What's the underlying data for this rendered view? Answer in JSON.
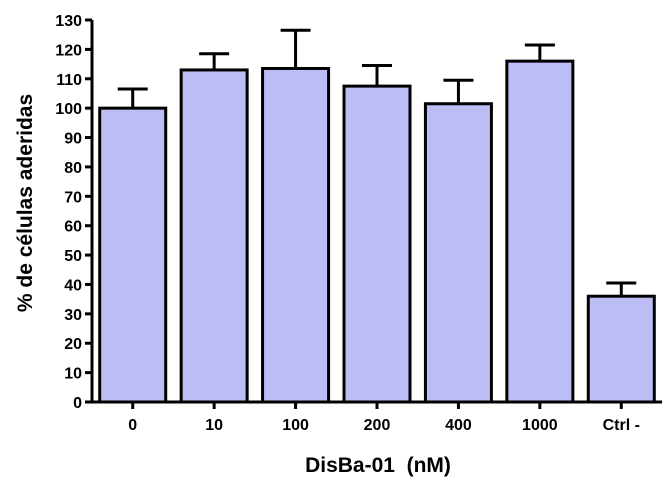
{
  "chart_data": {
    "type": "bar",
    "title": "",
    "xlabel": "DisBa-01  (nM)",
    "ylabel": "% de células aderidas",
    "categories": [
      "0",
      "10",
      "100",
      "200",
      "400",
      "1000",
      "Ctrl -"
    ],
    "values": [
      100,
      113,
      113.5,
      107.5,
      101.5,
      116,
      36
    ],
    "errors": [
      6.5,
      5.5,
      13,
      7,
      8,
      5.5,
      4.5
    ],
    "ylim": [
      0,
      130
    ],
    "yticks": [
      0,
      10,
      20,
      30,
      40,
      50,
      60,
      70,
      80,
      90,
      100,
      110,
      120,
      130
    ],
    "grid": false,
    "legend": "none",
    "colors": {
      "bar_fill": "#bdbdf5",
      "bar_stroke": "#000000",
      "axis": "#000000"
    }
  }
}
